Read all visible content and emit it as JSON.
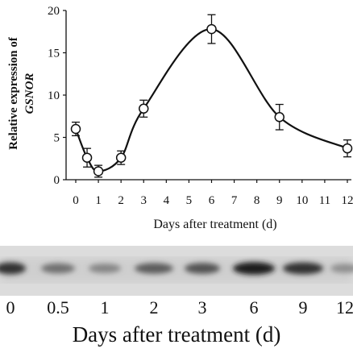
{
  "chart_data": {
    "type": "line",
    "title": "",
    "xlabel": "Days after treatment (d)",
    "ylabel_line1": "Relative expression of",
    "ylabel_line2": "GSNOR",
    "xlim": [
      0,
      12
    ],
    "ylim": [
      0,
      20
    ],
    "x_ticks": [
      0,
      1,
      2,
      3,
      4,
      5,
      6,
      7,
      8,
      9,
      10,
      11,
      12
    ],
    "y_ticks": [
      0,
      5,
      10,
      15,
      20
    ],
    "series": [
      {
        "x": [
          0,
          0.5,
          1,
          2,
          3,
          6,
          9,
          12
        ],
        "y": [
          6.0,
          2.6,
          1.0,
          2.6,
          8.4,
          17.8,
          7.4,
          3.7
        ],
        "error": [
          0.8,
          1.1,
          0.7,
          0.8,
          1.0,
          1.7,
          1.5,
          1.0
        ]
      }
    ],
    "grid": false,
    "legend": "none"
  },
  "blot": {
    "lane_labels": [
      "0",
      "0.5",
      "1",
      "2",
      "3",
      "6",
      "9",
      "12"
    ],
    "band_intensity": [
      0.85,
      0.55,
      0.45,
      0.65,
      0.7,
      0.95,
      0.85,
      0.4
    ],
    "xlabel": "Days after treatment (d)"
  }
}
